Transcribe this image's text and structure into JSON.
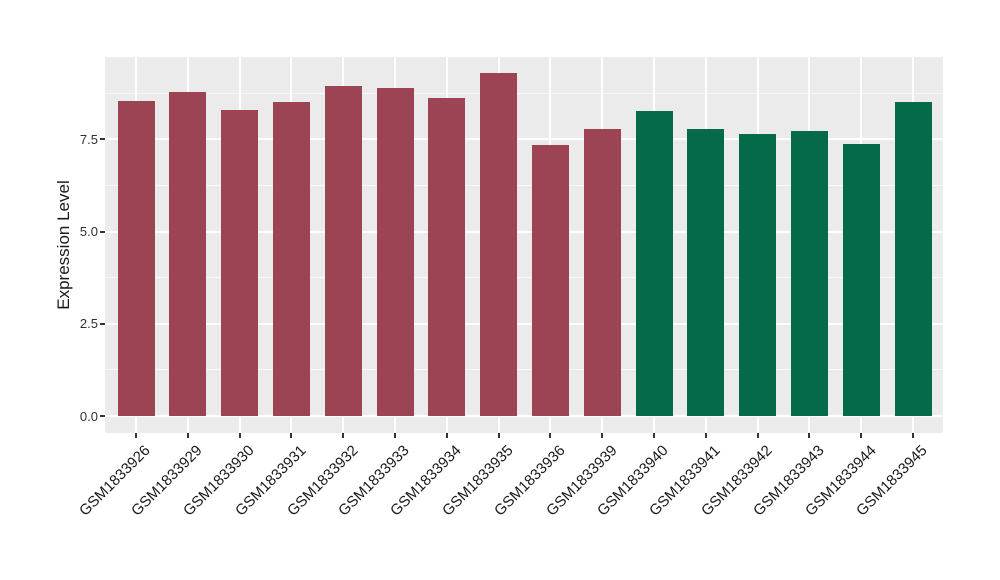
{
  "chart_data": {
    "type": "bar",
    "title": "",
    "xlabel": "",
    "ylabel": "Expression Level",
    "categories": [
      "GSM1833926",
      "GSM1833929",
      "GSM1833930",
      "GSM1833931",
      "GSM1833932",
      "GSM1833933",
      "GSM1833934",
      "GSM1833935",
      "GSM1833936",
      "GSM1833939",
      "GSM1833940",
      "GSM1833941",
      "GSM1833942",
      "GSM1833943",
      "GSM1833944",
      "GSM1833945"
    ],
    "values": [
      8.55,
      8.78,
      8.3,
      8.51,
      8.95,
      8.89,
      8.61,
      9.29,
      7.34,
      7.77,
      8.26,
      7.77,
      7.64,
      7.72,
      7.36,
      8.5
    ],
    "bar_colors": [
      "#9C4453",
      "#9C4453",
      "#9C4453",
      "#9C4453",
      "#9C4453",
      "#9C4453",
      "#9C4453",
      "#9C4453",
      "#9C4453",
      "#9C4453",
      "#046A49",
      "#046A49",
      "#046A49",
      "#046A49",
      "#046A49",
      "#046A49"
    ],
    "group_colors": {
      "group1": "#9C4453",
      "group2": "#046A49"
    },
    "ylim": [
      -0.45,
      9.73
    ],
    "yticks": [
      0.0,
      2.5,
      5.0,
      7.5
    ],
    "ytick_labels": [
      "0.0",
      "2.5",
      "5.0",
      "7.5"
    ],
    "minor_yticks": [
      1.25,
      3.75,
      6.25,
      8.75
    ],
    "grid": true,
    "legend_position": "none",
    "panel_background": "#EBEBEB",
    "grid_color": "#FFFFFF",
    "tick_color": "#333333"
  }
}
